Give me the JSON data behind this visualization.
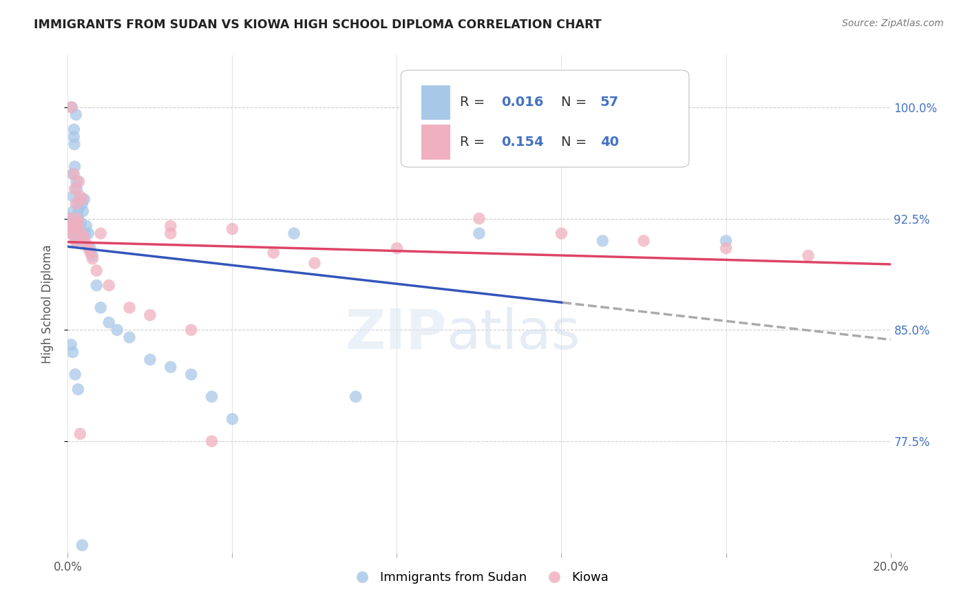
{
  "title": "IMMIGRANTS FROM SUDAN VS KIOWA HIGH SCHOOL DIPLOMA CORRELATION CHART",
  "source": "Source: ZipAtlas.com",
  "ylabel": "High School Diploma",
  "xlim": [
    0.0,
    20.0
  ],
  "ylim": [
    70.0,
    103.5
  ],
  "x_tick_positions": [
    0.0,
    4.0,
    8.0,
    12.0,
    16.0,
    20.0
  ],
  "x_tick_labels": [
    "0.0%",
    "",
    "",
    "",
    "",
    "20.0%"
  ],
  "y_tick_positions": [
    77.5,
    85.0,
    92.5,
    100.0
  ],
  "y_tick_labels": [
    "77.5%",
    "85.0%",
    "92.5%",
    "100.0%"
  ],
  "legend_label1": "Immigrants from Sudan",
  "legend_label2": "Kiowa",
  "blue_color": "#a8c8e8",
  "pink_color": "#f0b0c0",
  "blue_line_color": "#3355bb",
  "pink_line_color": "#dd4466",
  "gray_dash_color": "#aaaaaa",
  "blue_r": "0.016",
  "blue_n": "57",
  "pink_r": "0.154",
  "pink_n": "40",
  "stat_color": "#4472c4",
  "blue_x": [
    0.05,
    0.06,
    0.08,
    0.1,
    0.1,
    0.11,
    0.12,
    0.13,
    0.14,
    0.15,
    0.15,
    0.16,
    0.17,
    0.18,
    0.19,
    0.2,
    0.2,
    0.21,
    0.22,
    0.23,
    0.24,
    0.25,
    0.26,
    0.27,
    0.28,
    0.3,
    0.3,
    0.32,
    0.33,
    0.35,
    0.37,
    0.4,
    0.42,
    0.45,
    0.5,
    0.55,
    0.6,
    0.7,
    0.8,
    1.0,
    1.2,
    1.5,
    2.0,
    2.5,
    3.0,
    3.5,
    4.0,
    5.5,
    7.0,
    10.0,
    13.0,
    16.0,
    0.08,
    0.12,
    0.18,
    0.25,
    0.35
  ],
  "blue_y": [
    92.5,
    92.3,
    92.0,
    100.0,
    91.8,
    91.5,
    95.5,
    94.0,
    93.0,
    98.5,
    98.0,
    97.5,
    96.0,
    92.2,
    91.2,
    99.5,
    91.0,
    95.0,
    94.5,
    93.5,
    92.8,
    92.5,
    92.0,
    93.2,
    91.8,
    93.8,
    91.5,
    92.2,
    91.0,
    93.5,
    93.0,
    93.8,
    91.5,
    92.0,
    91.5,
    90.5,
    90.0,
    88.0,
    86.5,
    85.5,
    85.0,
    84.5,
    83.0,
    82.5,
    82.0,
    80.5,
    79.0,
    91.5,
    80.5,
    91.5,
    91.0,
    91.0,
    84.0,
    83.5,
    82.0,
    81.0,
    70.5
  ],
  "pink_x": [
    0.05,
    0.07,
    0.08,
    0.1,
    0.12,
    0.15,
    0.17,
    0.18,
    0.2,
    0.22,
    0.25,
    0.27,
    0.3,
    0.32,
    0.35,
    0.4,
    0.45,
    0.5,
    0.55,
    0.6,
    0.7,
    0.8,
    1.0,
    1.5,
    2.0,
    2.5,
    3.0,
    4.0,
    5.0,
    6.0,
    8.0,
    10.0,
    12.0,
    14.0,
    16.0,
    18.0,
    0.25,
    0.3,
    2.5,
    3.5
  ],
  "pink_y": [
    92.5,
    91.5,
    100.0,
    92.0,
    91.8,
    95.5,
    94.5,
    91.0,
    93.5,
    92.5,
    92.2,
    95.0,
    94.0,
    91.5,
    93.8,
    91.2,
    90.8,
    90.5,
    90.2,
    89.8,
    89.0,
    91.5,
    88.0,
    86.5,
    86.0,
    91.5,
    85.0,
    91.8,
    90.2,
    89.5,
    90.5,
    92.5,
    91.5,
    91.0,
    90.5,
    90.0,
    91.8,
    78.0,
    92.0,
    77.5
  ]
}
